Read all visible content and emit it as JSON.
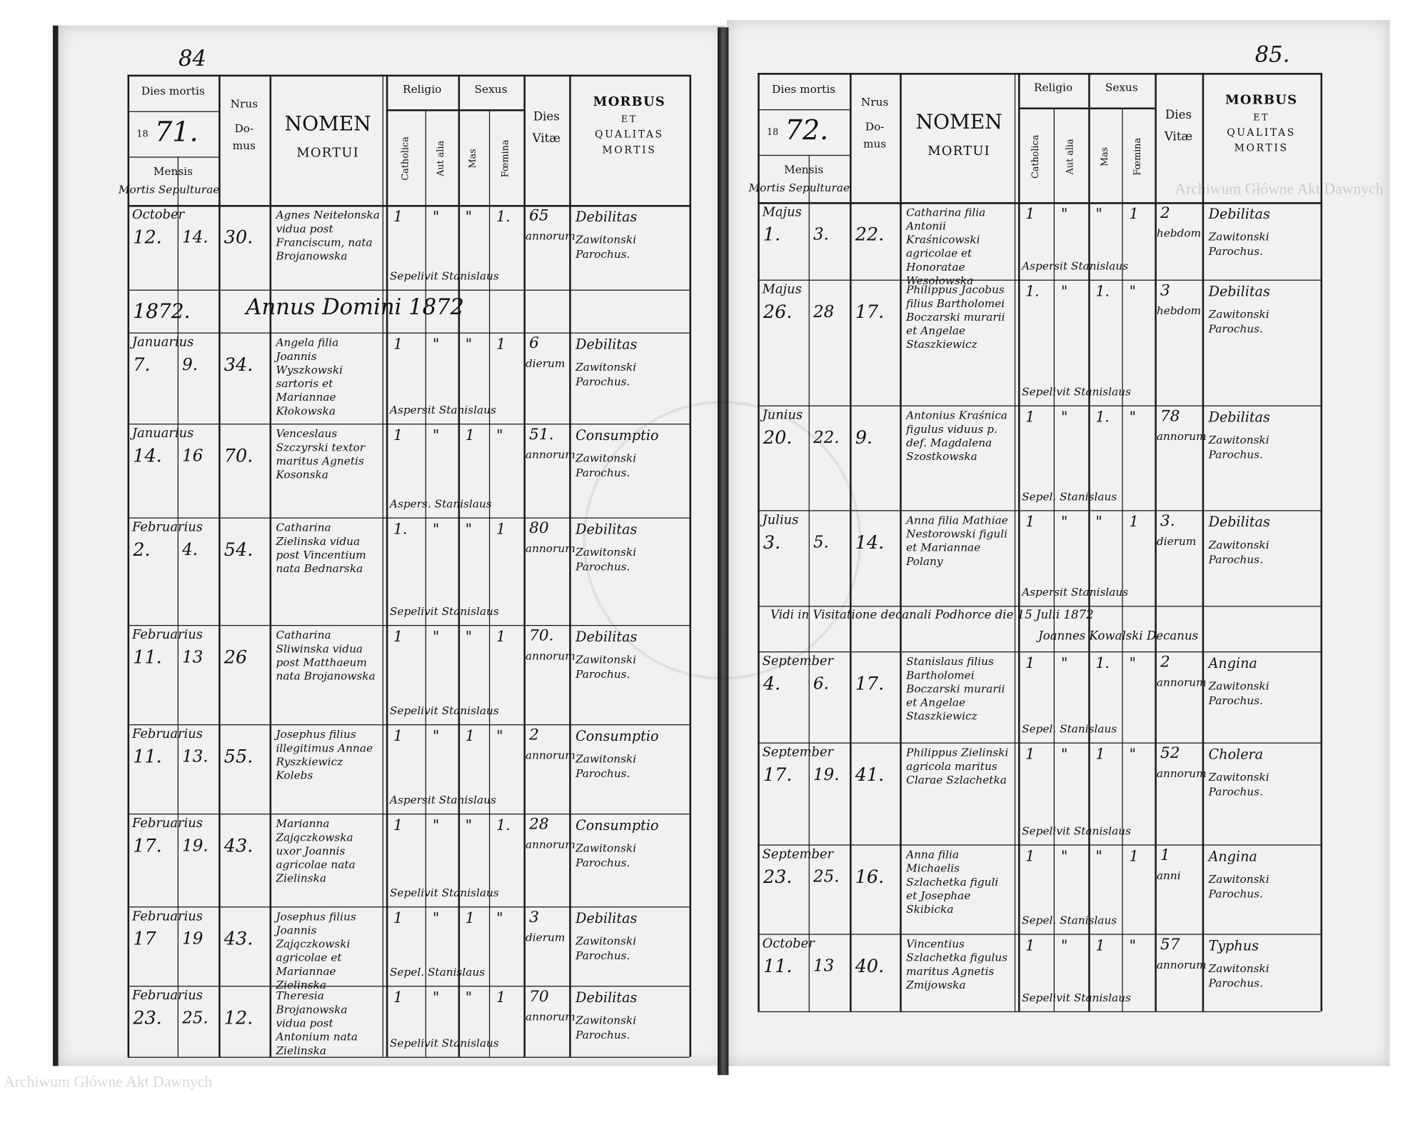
{
  "watermark": "Archiwum Główne Akt Dawnych",
  "header": {
    "dies_mortis": "Dies mortis",
    "year_prefix": "18",
    "mensis": "Mensis",
    "mortis_sepulturae": "Mortis Sepulturae",
    "nrus": "Nrus",
    "domus": "Do-\nmus",
    "nomen": "NOMEN",
    "mortui": "MORTUI",
    "religio": "Religio",
    "catholica": "Catholica",
    "aut_alia": "Aut alia",
    "sexus": "Sexus",
    "mas": "Mas",
    "foemina": "Fœmina",
    "dies": "Dies",
    "vitae": "Vitæ",
    "morbus": "MORBUS",
    "et": "ET",
    "qualitas": "QUALITAS",
    "mortis": "MORTIS"
  },
  "left_page": {
    "page_number": "84",
    "year_suffix": "71.",
    "annus_row": {
      "year": "1872.",
      "text": "Annus Domini 1872"
    },
    "rows": [
      {
        "month": "October",
        "d": "12.",
        "s": "14.",
        "no": "30.",
        "name": "Agnes Neitełonska vidua post Franciscum, nata Brojanowska",
        "c": "1",
        "a": "\"",
        "m": "\"",
        "f": "1.",
        "age": "65",
        "unit": "annorum",
        "morbus": "Debilitas",
        "sep": "Sepelivit Stanislaus",
        "par": "Zawitonski Parochus."
      },
      {
        "month": "Januarius",
        "d": "7.",
        "s": "9.",
        "no": "34.",
        "name": "Angela filia Joannis Wyszkowski sartoris et Mariannae Kłokowska",
        "c": "1",
        "a": "\"",
        "m": "\"",
        "f": "1",
        "age": "6",
        "unit": "dierum",
        "morbus": "Debilitas",
        "sep": "Aspersit Stanislaus",
        "par": "Zawitonski Parochus."
      },
      {
        "month": "Januarius",
        "d": "14.",
        "s": "16",
        "no": "70.",
        "name": "Venceslaus Szczyrski textor maritus Agnetis Kosonska",
        "c": "1",
        "a": "\"",
        "m": "1",
        "f": "\"",
        "age": "51.",
        "unit": "annorum",
        "morbus": "Consumptio",
        "sep": "Aspers. Stanislaus",
        "par": "Zawitonski Parochus."
      },
      {
        "month": "Februarius",
        "d": "2.",
        "s": "4.",
        "no": "54.",
        "name": "Catharina Zielinska vidua post Vincentium nata Bednarska",
        "c": "1.",
        "a": "\"",
        "m": "\"",
        "f": "1",
        "age": "80",
        "unit": "annorum",
        "morbus": "Debilitas",
        "sep": "Sepelivit Stanislaus",
        "par": "Zawitonski Parochus."
      },
      {
        "month": "Februarius",
        "d": "11.",
        "s": "13",
        "no": "26",
        "name": "Catharina Sliwinska vidua post Matthaeum nata Brojanowska",
        "c": "1",
        "a": "\"",
        "m": "\"",
        "f": "1",
        "age": "70.",
        "unit": "annorum",
        "morbus": "Debilitas",
        "sep": "Sepelivit Stanislaus",
        "par": "Zawitonski Parochus."
      },
      {
        "month": "Februarius",
        "d": "11.",
        "s": "13.",
        "no": "55.",
        "name": "Josephus filius illegitimus Annae Ryszkiewicz Kolebs",
        "c": "1",
        "a": "\"",
        "m": "1",
        "f": "\"",
        "age": "2",
        "unit": "annorum",
        "morbus": "Consumptio",
        "sep": "Aspersit Stanislaus",
        "par": "Zawitonski Parochus."
      },
      {
        "month": "Februarius",
        "d": "17.",
        "s": "19.",
        "no": "43.",
        "name": "Marianna Zajączkowska uxor Joannis agricolae nata Zielinska",
        "c": "1",
        "a": "\"",
        "m": "\"",
        "f": "1.",
        "age": "28",
        "unit": "annorum",
        "morbus": "Consumptio",
        "sep": "Sepelivit Stanislaus",
        "par": "Zawitonski Parochus."
      },
      {
        "month": "Februarius",
        "d": "17",
        "s": "19",
        "no": "43.",
        "name": "Josephus filius Joannis Zajączkowski agricolae et Mariannae Zielinska",
        "c": "1",
        "a": "\"",
        "m": "1",
        "f": "\"",
        "age": "3",
        "unit": "dierum",
        "morbus": "Debilitas",
        "sep": "Sepel. Stanislaus",
        "par": "Zawitonski Parochus."
      },
      {
        "month": "Februarius",
        "d": "23.",
        "s": "25.",
        "no": "12.",
        "name": "Theresia Brojanowska vidua post Antonium nata Zielinska",
        "c": "1",
        "a": "\"",
        "m": "\"",
        "f": "1",
        "age": "70",
        "unit": "annorum",
        "morbus": "Debilitas",
        "sep": "Sepelivit Stanislaus",
        "par": "Zawitonski Parochus."
      }
    ]
  },
  "right_page": {
    "page_number": "85.",
    "year_suffix": "72.",
    "visitation": {
      "text": "Vidi in Visitatione decanali Podhorce die 15 Julii 1872",
      "signature": "Joannes Kowalski Decanus"
    },
    "rows": [
      {
        "month": "Majus",
        "d": "1.",
        "s": "3.",
        "no": "22.",
        "name": "Catharina filia Antonii Kraśnicowski agricolae et Honoratae Wesołowska",
        "c": "1",
        "a": "\"",
        "m": "\"",
        "f": "1",
        "age": "2",
        "unit": "hebdom.",
        "morbus": "Debilitas",
        "sep": "Aspersit Stanislaus",
        "par": "Zawitonski Parochus."
      },
      {
        "month": "Majus",
        "d": "26.",
        "s": "28",
        "no": "17.",
        "name": "Philippus Jacobus filius Bartholomei Boczarski murarii et Angelae Staszkiewicz",
        "c": "1.",
        "a": "\"",
        "m": "1.",
        "f": "\"",
        "age": "3",
        "unit": "hebdom.",
        "morbus": "Debilitas",
        "sep": "Sepelivit Stanislaus",
        "par": "Zawitonski Parochus."
      },
      {
        "month": "Junius",
        "d": "20.",
        "s": "22.",
        "no": "9.",
        "name": "Antonius Kraśnica figulus viduus p. def. Magdalena Szostkowska",
        "c": "1",
        "a": "\"",
        "m": "1.",
        "f": "\"",
        "age": "78",
        "unit": "annorum",
        "morbus": "Debilitas",
        "sep": "Sepel. Stanislaus",
        "par": "Zawitonski Parochus."
      },
      {
        "month": "Julius",
        "d": "3.",
        "s": "5.",
        "no": "14.",
        "name": "Anna filia Mathiae Nestorowski figuli et Mariannae Polany",
        "c": "1",
        "a": "\"",
        "m": "\"",
        "f": "1",
        "age": "3.",
        "unit": "dierum",
        "morbus": "Debilitas",
        "sep": "Aspersit Stanislaus",
        "par": "Zawitonski Parochus."
      },
      {
        "month": "September",
        "d": "4.",
        "s": "6.",
        "no": "17.",
        "name": "Stanislaus filius Bartholomei Boczarski murarii et Angelae Staszkiewicz",
        "c": "1",
        "a": "\"",
        "m": "1.",
        "f": "\"",
        "age": "2",
        "unit": "annorum",
        "morbus": "Angina",
        "sep": "Sepel. Stanislaus",
        "par": "Zawitonski Parochus."
      },
      {
        "month": "September",
        "d": "17.",
        "s": "19.",
        "no": "41.",
        "name": "Philippus Zielinski agricola maritus Clarae Szlachetka",
        "c": "1",
        "a": "\"",
        "m": "1",
        "f": "\"",
        "age": "52",
        "unit": "annorum",
        "morbus": "Cholera",
        "sep": "Sepelivit Stanislaus",
        "par": "Zawitonski Parochus."
      },
      {
        "month": "September",
        "d": "23.",
        "s": "25.",
        "no": "16.",
        "name": "Anna filia Michaelis Szlachetka figuli et Josephae Skibicka",
        "c": "1",
        "a": "\"",
        "m": "\"",
        "f": "1",
        "age": "1",
        "unit": "anni",
        "morbus": "Angina",
        "sep": "Sepel. Stanislaus",
        "par": "Zawitonski Parochus."
      },
      {
        "month": "October",
        "d": "11.",
        "s": "13",
        "no": "40.",
        "name": "Vincentius Szlachetka figulus maritus Agnetis Zmijowska",
        "c": "1",
        "a": "\"",
        "m": "1",
        "f": "\"",
        "age": "57",
        "unit": "annorum",
        "morbus": "Typhus",
        "sep": "Sepelivit Stanislaus",
        "par": "Zawitonski Parochus."
      }
    ]
  }
}
